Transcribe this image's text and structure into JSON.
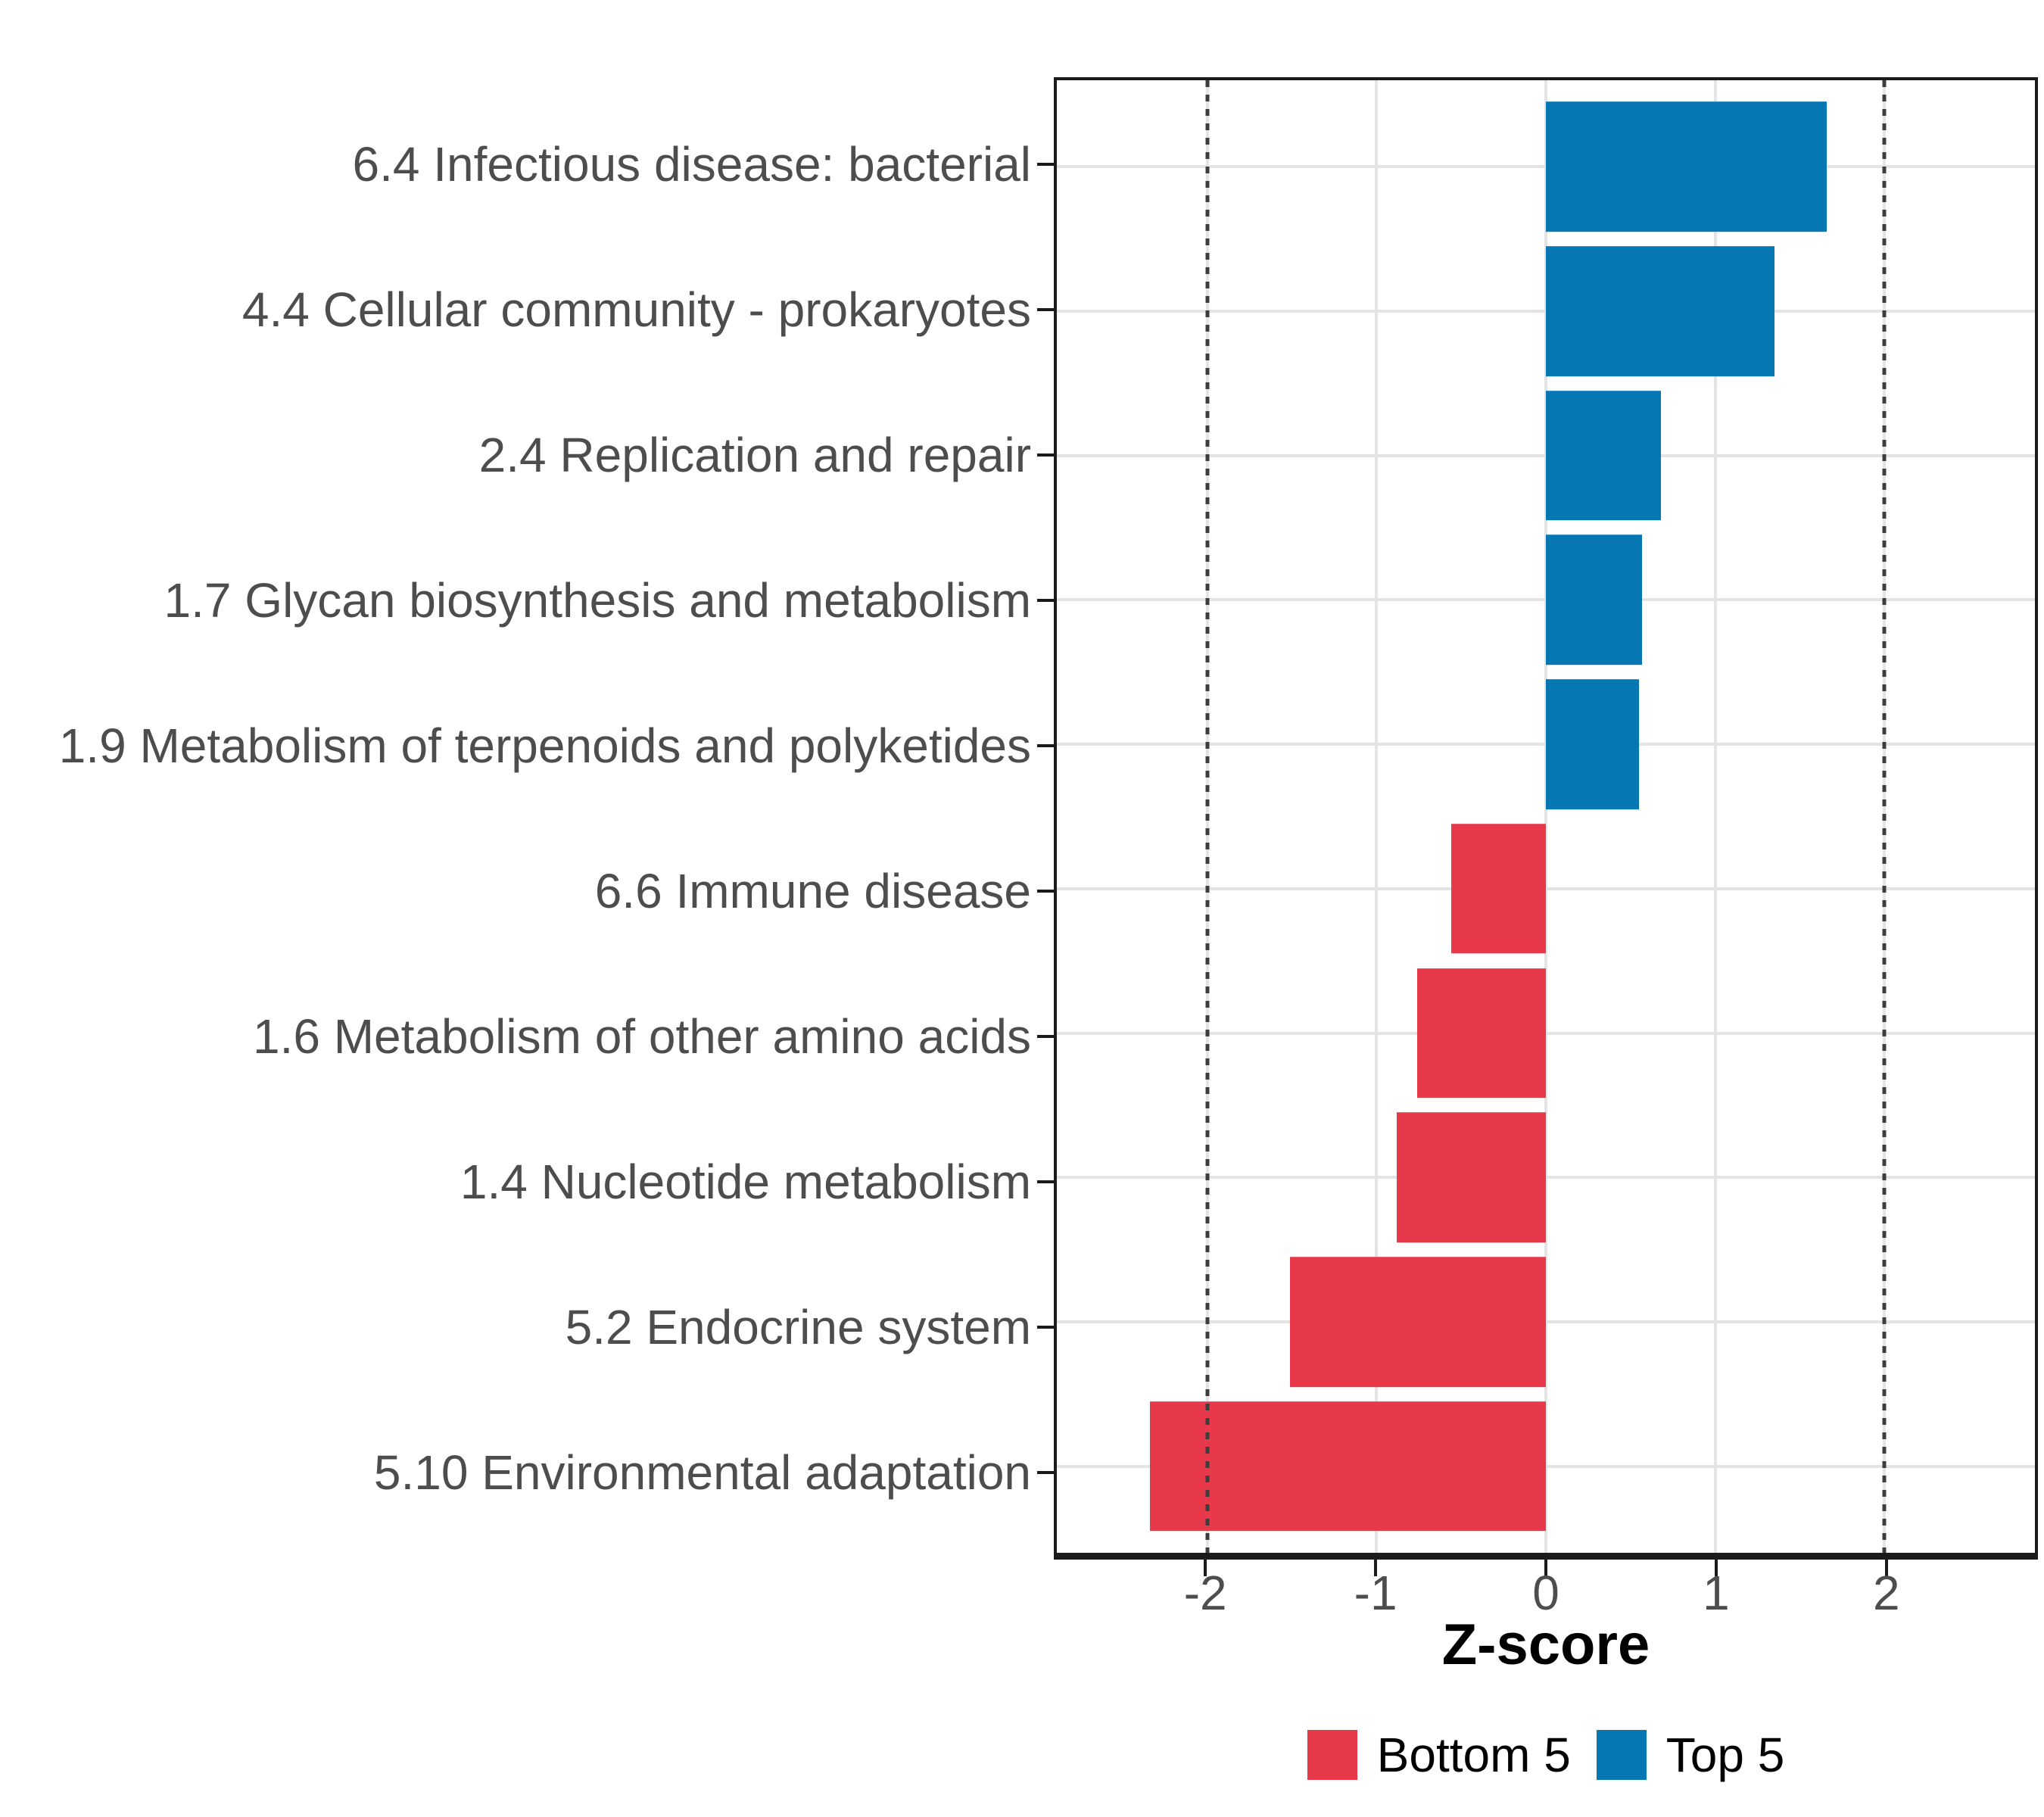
{
  "chart_data": {
    "type": "bar",
    "orientation": "horizontal",
    "title": "",
    "xlabel": "Z-score",
    "ylabel": "",
    "xlim": [
      -2.89,
      2.89
    ],
    "x_ticks": [
      -2,
      -1,
      0,
      1,
      2
    ],
    "x_tick_labels": [
      "-2",
      "-1",
      "0",
      "1",
      "2"
    ],
    "reference_lines": [
      -2,
      2
    ],
    "grid": true,
    "legend_position": "bottom",
    "categories": [
      "6.4 Infectious disease: bacterial",
      "4.4 Cellular community - prokaryotes",
      "2.4 Replication and repair",
      "1.7 Glycan biosynthesis and metabolism",
      "1.9 Metabolism of terpenoids and polyketides",
      "6.6 Immune disease",
      "1.6 Metabolism of other amino acids",
      "1.4 Nucleotide metabolism",
      "5.2 Endocrine system",
      "5.10 Environmental adaptation"
    ],
    "series": [
      {
        "name": "Z-score",
        "values": [
          1.66,
          1.35,
          0.68,
          0.57,
          0.55,
          -0.56,
          -0.76,
          -0.88,
          -1.51,
          -2.34
        ]
      }
    ],
    "groups": [
      "Top 5",
      "Top 5",
      "Top 5",
      "Top 5",
      "Top 5",
      "Bottom 5",
      "Bottom 5",
      "Bottom 5",
      "Bottom 5",
      "Bottom 5"
    ],
    "legend": [
      {
        "label": "Bottom 5",
        "color": "#E8394A"
      },
      {
        "label": "Top 5",
        "color": "#0777B4"
      }
    ],
    "colors": {
      "Bottom 5": "#E8394A",
      "Top 5": "#0777B4"
    }
  }
}
